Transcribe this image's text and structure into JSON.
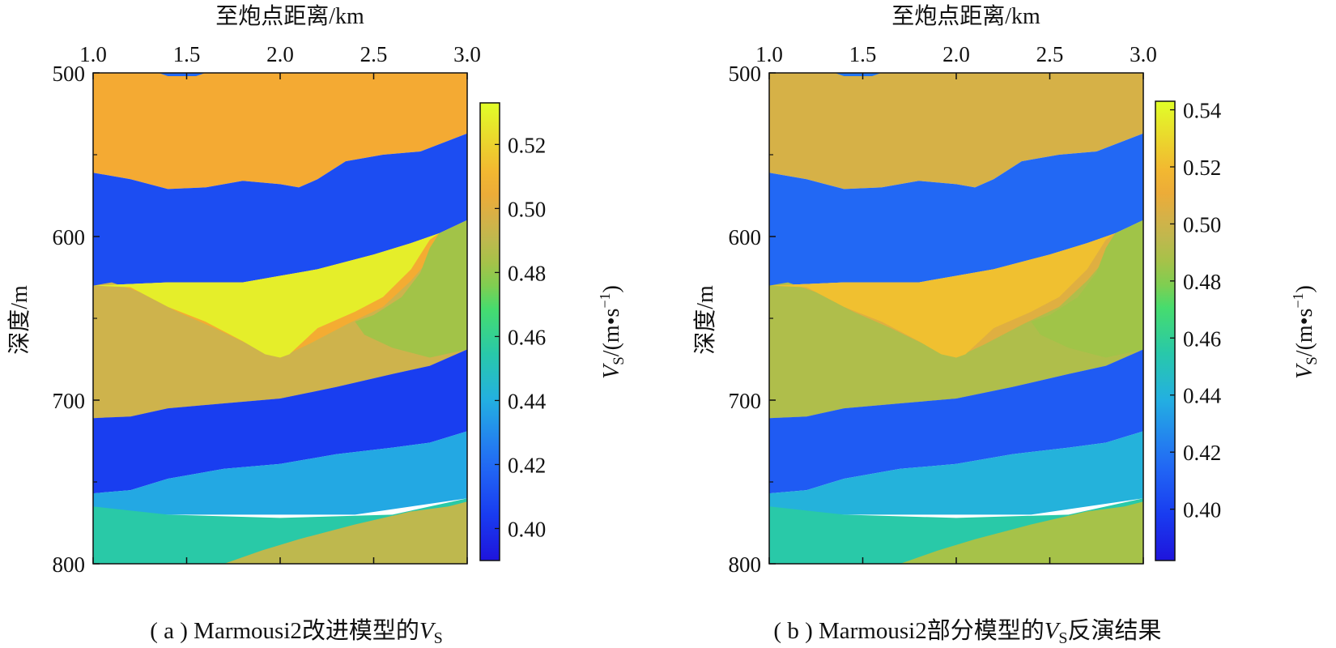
{
  "chart_data": [
    {
      "type": "heatmap",
      "caption": "( a ) Marmousi2改进模型的V_S",
      "caption_parts": [
        "( a ) Marmousi2改进模型的",
        "V",
        "S"
      ],
      "xlabel": "至炮点距离/km",
      "ylabel": "深度/m",
      "colorbar_label_parts": [
        "V",
        "S",
        "/(m•s",
        "−1",
        ")"
      ],
      "x_ticks": [
        "1.0",
        "1.5",
        "2.0",
        "2.5",
        "3.0"
      ],
      "y_ticks": [
        "500",
        "600",
        "700",
        "800"
      ],
      "xlim": [
        1.0,
        3.0
      ],
      "ylim": [
        500,
        800
      ],
      "colorbar_range": [
        0.39,
        0.533
      ],
      "colorbar_ticks": [
        "0.40",
        "0.42",
        "0.44",
        "0.46",
        "0.48",
        "0.50",
        "0.52"
      ],
      "layer_values": {
        "blue_lens": 0.42,
        "top": 0.507,
        "blue1": 0.41,
        "yellow_lens": 0.528,
        "olive_left": 0.495,
        "green_right": 0.482,
        "orange_mid": 0.508,
        "blue2": 0.405,
        "cyan": 0.438,
        "teal": 0.455,
        "olive_bottom": 0.49
      }
    },
    {
      "type": "heatmap",
      "caption": "( b ) Marmousi2部分模型的V_S反演结果",
      "caption_parts": [
        "( b ) Marmousi2部分模型的",
        "V",
        "S",
        "反演结果"
      ],
      "xlabel": "至炮点距离/km",
      "ylabel": "深度/m",
      "colorbar_label_parts": [
        "V",
        "S",
        "/(m•s",
        "−1",
        ")"
      ],
      "x_ticks": [
        "1.0",
        "1.5",
        "2.0",
        "2.5",
        "3.0"
      ],
      "y_ticks": [
        "500",
        "600",
        "700",
        "800"
      ],
      "xlim": [
        1.0,
        3.0
      ],
      "ylim": [
        500,
        800
      ],
      "colorbar_range": [
        0.382,
        0.543
      ],
      "colorbar_ticks": [
        "0.40",
        "0.42",
        "0.44",
        "0.46",
        "0.48",
        "0.50",
        "0.52",
        "0.54"
      ],
      "layer_values": {
        "blue_lens": 0.42,
        "top": 0.503,
        "blue1": 0.415,
        "yellow_lens": 0.522,
        "olive_left": 0.49,
        "green_right": 0.485,
        "orange_mid": 0.506,
        "blue2": 0.41,
        "cyan": 0.44,
        "teal": 0.455,
        "olive_bottom": 0.487
      }
    }
  ]
}
